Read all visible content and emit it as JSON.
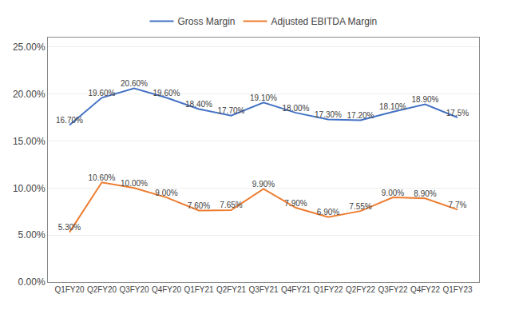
{
  "chart_data": {
    "type": "line",
    "categories": [
      "Q1FY20",
      "Q2FY20",
      "Q3FY20",
      "Q4FY20",
      "Q1FY21",
      "Q2FY21",
      "Q3FY21",
      "Q4FY21",
      "Q1FY22",
      "Q2FY22",
      "Q3FY22",
      "Q4FY22",
      "Q1FY23"
    ],
    "series": [
      {
        "name": "Gross Margin",
        "color": "#4472C4",
        "values": [
          16.7,
          19.6,
          20.6,
          19.6,
          18.4,
          17.7,
          19.1,
          18.0,
          17.3,
          17.2,
          18.1,
          18.9,
          17.5
        ],
        "value_labels": [
          "16.70%",
          "19.60%",
          "20.60%",
          "19.60%",
          "18.40%",
          "17.70%",
          "19.10%",
          "18.00%",
          "17.30%",
          "17.20%",
          "18.10%",
          "18.90%",
          "17.5%"
        ]
      },
      {
        "name": "Adjusted EBITDA Margin",
        "color": "#ED7D31",
        "values": [
          5.3,
          10.6,
          10.0,
          9.0,
          7.6,
          7.65,
          9.9,
          7.9,
          6.9,
          7.55,
          9.0,
          8.9,
          7.7
        ],
        "value_labels": [
          "5.30%",
          "10.60%",
          "10.00%",
          "9.00%",
          "7.60%",
          "7.65%",
          "9.90%",
          "7.90%",
          "6.90%",
          "7.55%",
          "9.00%",
          "8.90%",
          "7.7%"
        ]
      }
    ],
    "ylim": [
      0.0,
      26.0
    ],
    "yticks": [
      {
        "value": 0.0,
        "label": "0.00%"
      },
      {
        "value": 5.0,
        "label": "5.00%"
      },
      {
        "value": 10.0,
        "label": "10.00%"
      },
      {
        "value": 15.0,
        "label": "15.00%"
      },
      {
        "value": 20.0,
        "label": "20.00%"
      },
      {
        "value": 25.0,
        "label": "25.00%"
      }
    ],
    "grid": true,
    "legend": "top",
    "data_labels": true
  }
}
